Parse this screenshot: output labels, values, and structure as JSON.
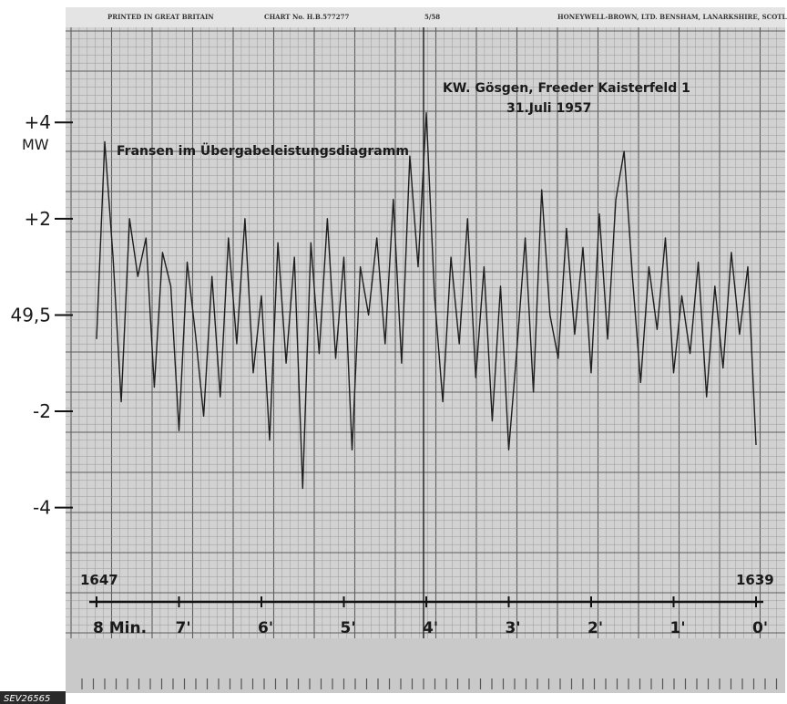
{
  "header": {
    "printed": "PRINTED IN GREAT BRITAIN",
    "chart_no": "CHART No. H.B.577277",
    "code": "5/58",
    "maker": "HONEYWELL-BROWN, LTD. BENSHAM, LANARKSHIRE, SCOTLA"
  },
  "figure_code": "SEV26565",
  "chart_data": {
    "type": "line",
    "title": "KW. Gösgen, Freeder Kaisterfeld 1",
    "subtitle": "31.Juli 1957",
    "annotation": "Fransen im Übergabeleistungsdiagramm",
    "ylabel": "MW",
    "ylim": [
      -5.2,
      4.8
    ],
    "yticks": [
      {
        "value": 4,
        "label": "+4"
      },
      {
        "value": 2,
        "label": "+2"
      },
      {
        "value": 0,
        "label": "49,5"
      },
      {
        "value": -2,
        "label": "-2"
      },
      {
        "value": -4,
        "label": "-4"
      }
    ],
    "xlim": [
      8,
      0
    ],
    "xticks": [
      {
        "value": 8,
        "label": "8 Min."
      },
      {
        "value": 7,
        "label": "7'"
      },
      {
        "value": 6,
        "label": "6'"
      },
      {
        "value": 5,
        "label": "5'"
      },
      {
        "value": 4,
        "label": "4'"
      },
      {
        "value": 3,
        "label": "3'"
      },
      {
        "value": 2,
        "label": "2'"
      },
      {
        "value": 1,
        "label": "1'"
      },
      {
        "value": 0,
        "label": "0'"
      }
    ],
    "counter_start": "1647",
    "counter_end": "1639",
    "grid": true,
    "series": [
      {
        "x": [
          8.0,
          7.9,
          7.8,
          7.7,
          7.6,
          7.5,
          7.4,
          7.3,
          7.2,
          7.1,
          7.0,
          6.9,
          6.8,
          6.7,
          6.6,
          6.5,
          6.4,
          6.3,
          6.2,
          6.1,
          6.0,
          5.9,
          5.8,
          5.7,
          5.6,
          5.5,
          5.4,
          5.3,
          5.2,
          5.1,
          5.0,
          4.9,
          4.8,
          4.7,
          4.6,
          4.5,
          4.4,
          4.3,
          4.2,
          4.1,
          4.0,
          3.9,
          3.8,
          3.7,
          3.6,
          3.5,
          3.4,
          3.3,
          3.2,
          3.1,
          3.0,
          2.9,
          2.8,
          2.7,
          2.6,
          2.5,
          2.4,
          2.3,
          2.2,
          2.1,
          2.0,
          1.9,
          1.8,
          1.7,
          1.6,
          1.5,
          1.4,
          1.3,
          1.2,
          1.1,
          1.0,
          0.9,
          0.8,
          0.7,
          0.6,
          0.5,
          0.4,
          0.3,
          0.2,
          0.1,
          0.0
        ],
        "y": [
          -0.5,
          3.6,
          1.2,
          -1.8,
          2.0,
          0.8,
          1.6,
          -1.5,
          1.3,
          0.6,
          -2.4,
          1.1,
          -0.4,
          -2.1,
          0.8,
          -1.7,
          1.6,
          -0.6,
          2.0,
          -1.2,
          0.4,
          -2.6,
          1.5,
          -1.0,
          1.2,
          -3.6,
          1.5,
          -0.8,
          2.0,
          -0.9,
          1.2,
          -2.8,
          1.0,
          0.0,
          1.6,
          -0.6,
          2.4,
          -1.0,
          3.3,
          1.0,
          4.2,
          0.4,
          -1.8,
          1.2,
          -0.6,
          2.0,
          -1.3,
          1.0,
          -2.2,
          0.6,
          -2.8,
          -0.7,
          1.6,
          -1.6,
          2.6,
          0.0,
          -0.9,
          1.8,
          -0.4,
          1.4,
          -1.2,
          2.1,
          -0.5,
          2.4,
          3.4,
          0.8,
          -1.4,
          1.0,
          -0.3,
          1.6,
          -1.2,
          0.4,
          -0.8,
          1.1,
          -1.7,
          0.6,
          -1.1,
          1.3,
          -0.4,
          1.0,
          -2.7
        ]
      }
    ]
  }
}
